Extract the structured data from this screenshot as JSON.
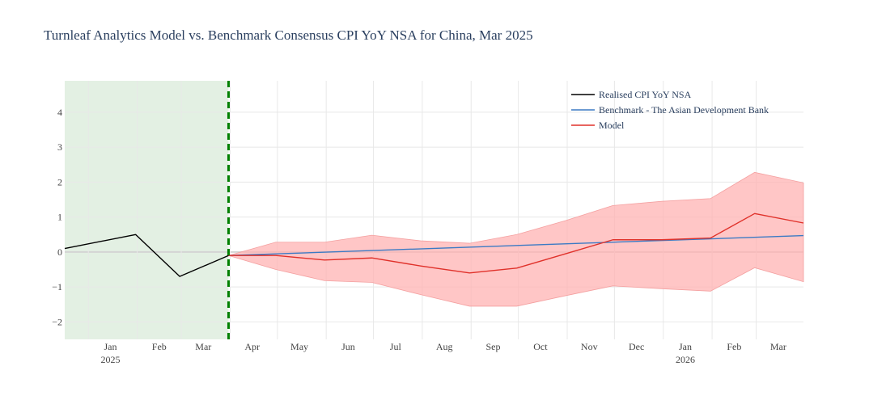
{
  "chart_data": {
    "type": "line",
    "title": "Turnleaf Analytics Model vs. Benchmark Consensus CPI YoY NSA for China, Mar 2025",
    "xlabel": "",
    "ylabel": "",
    "ylim": [
      -2.5,
      4.9
    ],
    "y_ticks": [
      4,
      3,
      2,
      1,
      0,
      -1,
      -2
    ],
    "y_tick_labels": [
      "4",
      "3",
      "2",
      "1",
      "0",
      "−1",
      "−2"
    ],
    "x_range": [
      "2024-12-17",
      "2026-03-31"
    ],
    "x_ticks": [
      {
        "date": "2025-01-15",
        "label": "Jan",
        "year": "2025"
      },
      {
        "date": "2025-02-15",
        "label": "Feb",
        "year": ""
      },
      {
        "date": "2025-03-15",
        "label": "Mar",
        "year": ""
      },
      {
        "date": "2025-04-15",
        "label": "Apr",
        "year": ""
      },
      {
        "date": "2025-05-15",
        "label": "May",
        "year": ""
      },
      {
        "date": "2025-06-15",
        "label": "Jun",
        "year": ""
      },
      {
        "date": "2025-07-15",
        "label": "Jul",
        "year": ""
      },
      {
        "date": "2025-08-15",
        "label": "Aug",
        "year": ""
      },
      {
        "date": "2025-09-15",
        "label": "Sep",
        "year": ""
      },
      {
        "date": "2025-10-15",
        "label": "Oct",
        "year": ""
      },
      {
        "date": "2025-11-15",
        "label": "Nov",
        "year": ""
      },
      {
        "date": "2025-12-15",
        "label": "Dec",
        "year": ""
      },
      {
        "date": "2026-01-15",
        "label": "Jan",
        "year": "2026"
      },
      {
        "date": "2026-02-15",
        "label": "Feb",
        "year": ""
      },
      {
        "date": "2026-03-15",
        "label": "Mar",
        "year": ""
      }
    ],
    "x_gridlines": [
      "2025-01-01",
      "2025-02-01",
      "2025-03-01",
      "2025-04-01",
      "2025-05-01",
      "2025-06-01",
      "2025-07-01",
      "2025-08-01",
      "2025-09-01",
      "2025-10-01",
      "2025-11-01",
      "2025-12-01",
      "2026-01-01",
      "2026-02-01",
      "2026-03-01"
    ],
    "shaded_region": {
      "x0": "2024-12-17",
      "x1": "2025-03-31",
      "color": "#e3f0e3"
    },
    "vertical_marker": {
      "x": "2025-03-31",
      "color": "#008000",
      "style": "dashed"
    },
    "series": [
      {
        "name": "Realised CPI YoY NSA",
        "color": "#000000",
        "x": [
          "2024-12-17",
          "2025-01-31",
          "2025-02-28",
          "2025-03-31"
        ],
        "y": [
          0.1,
          0.5,
          -0.7,
          -0.1
        ]
      },
      {
        "name": "Benchmark - The Asian Development Bank",
        "color": "#3b7ac4",
        "x": [
          "2025-03-31",
          "2026-03-31"
        ],
        "y": [
          -0.1,
          0.47
        ]
      },
      {
        "name": "Model",
        "color": "#e0312a",
        "x": [
          "2025-03-31",
          "2025-04-30",
          "2025-05-31",
          "2025-06-30",
          "2025-07-31",
          "2025-08-31",
          "2025-09-30",
          "2025-10-31",
          "2025-11-30",
          "2025-12-31",
          "2026-01-31",
          "2026-02-28",
          "2026-03-31"
        ],
        "y": [
          -0.1,
          -0.1,
          -0.23,
          -0.17,
          -0.4,
          -0.6,
          -0.46,
          -0.05,
          0.35,
          0.35,
          0.4,
          1.1,
          0.83
        ]
      }
    ],
    "band": {
      "color": "#ffb3b3",
      "x": [
        "2025-03-31",
        "2025-04-30",
        "2025-05-31",
        "2025-06-30",
        "2025-07-31",
        "2025-08-31",
        "2025-09-30",
        "2025-10-31",
        "2025-11-30",
        "2025-12-31",
        "2026-01-31",
        "2026-02-28",
        "2026-03-31"
      ],
      "upper": [
        -0.1,
        0.28,
        0.28,
        0.48,
        0.32,
        0.25,
        0.5,
        0.9,
        1.33,
        1.45,
        1.53,
        2.28,
        1.98
      ],
      "lower": [
        -0.1,
        -0.5,
        -0.82,
        -0.87,
        -1.22,
        -1.55,
        -1.55,
        -1.25,
        -0.97,
        -1.05,
        -1.12,
        -0.45,
        -0.85
      ]
    },
    "legend": {
      "position": "top-right",
      "items": [
        "Realised CPI YoY NSA",
        "Benchmark - The Asian Development Bank",
        "Model"
      ]
    },
    "grid": true
  }
}
